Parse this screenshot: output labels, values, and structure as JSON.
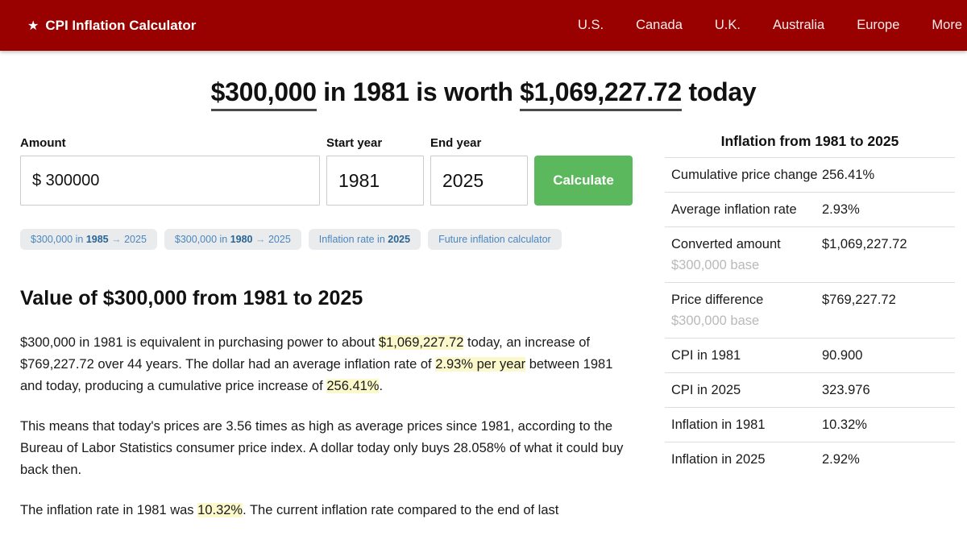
{
  "navbar": {
    "star": "★",
    "brand": "CPI Inflation Calculator",
    "links": [
      "U.S.",
      "Canada",
      "U.K.",
      "Australia",
      "Europe",
      "More"
    ]
  },
  "headline": {
    "amount": "$300,000",
    "middle": " in 1981 is worth ",
    "result": "$1,069,227.72",
    "suffix": " today"
  },
  "form": {
    "amount_label": "Amount",
    "amount_value": "$ 300000",
    "start_year_label": "Start year",
    "start_year_value": "1981",
    "end_year_label": "End year",
    "end_year_value": "2025",
    "calculate_label": "Calculate"
  },
  "chips": [
    {
      "pre": "$300,000 in ",
      "bold": "1985",
      "arrow": "→",
      "post": " 2025"
    },
    {
      "pre": "$300,000 in ",
      "bold": "1980",
      "arrow": "→",
      "post": " 2025"
    },
    {
      "pre": "Inflation rate in ",
      "bold": "2025",
      "arrow": "",
      "post": ""
    },
    {
      "pre": "Future inflation calculator",
      "bold": "",
      "arrow": "",
      "post": ""
    }
  ],
  "article": {
    "heading": "Value of $300,000 from 1981 to 2025",
    "p1": {
      "s1": "$300,000 in 1981 is equivalent in purchasing power to about ",
      "h1": "$1,069,227.72",
      "s2": " today, an increase of $769,227.72 over 44 years. The dollar had an average inflation rate of ",
      "h2": "2.93% per year",
      "s3": " between 1981 and today, producing a cumulative price increase of ",
      "h3": "256.41%",
      "s4": "."
    },
    "p2": "This means that today's prices are 3.56 times as high as average prices since 1981, according to the Bureau of Labor Statistics consumer price index. A dollar today only buys 28.058% of what it could buy back then.",
    "p3": {
      "s1": "The inflation rate in 1981 was ",
      "h1": "10.32%",
      "s2": ". The current inflation rate compared to the end of last"
    }
  },
  "stats": {
    "title": "Inflation from 1981 to 2025",
    "rows": [
      {
        "label": "Cumulative price change",
        "sub": "",
        "value": "256.41%"
      },
      {
        "label": "Average inflation rate",
        "sub": "",
        "value": "2.93%"
      },
      {
        "label": "Converted amount",
        "sub": "$300,000 base",
        "value": "$1,069,227.72"
      },
      {
        "label": "Price difference",
        "sub": "$300,000 base",
        "value": "$769,227.72"
      },
      {
        "label": "CPI in 1981",
        "sub": "",
        "value": "90.900"
      },
      {
        "label": "CPI in 2025",
        "sub": "",
        "value": "323.976"
      },
      {
        "label": "Inflation in 1981",
        "sub": "",
        "value": "10.32%"
      },
      {
        "label": "Inflation in 2025",
        "sub": "",
        "value": "2.92%"
      }
    ]
  },
  "colors": {
    "navbar_red": "#990000",
    "button_green": "#5cb85c",
    "highlight_yellow": "#fbf8cb",
    "chip_blue": "#4a87c0"
  }
}
